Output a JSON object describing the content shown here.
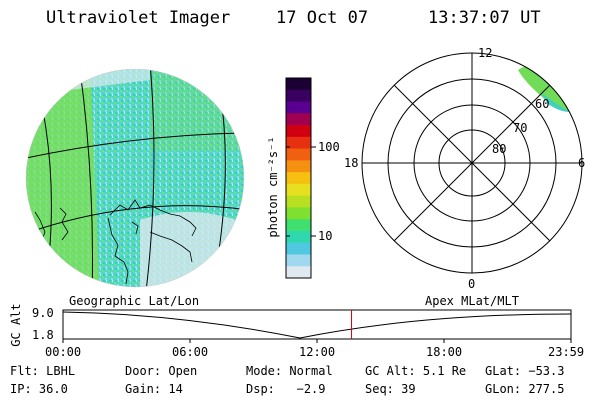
{
  "header": {
    "instrument": "Ultraviolet Imager",
    "date": "17 Oct 07",
    "time": "13:37:07 UT"
  },
  "colorbar": {
    "unit_label": "photon cm⁻²s⁻¹",
    "tick_labels": [
      "100",
      "10"
    ],
    "colors": [
      "#1a0033",
      "#3a0060",
      "#5a0090",
      "#a00050",
      "#d00010",
      "#e63010",
      "#f06010",
      "#f59010",
      "#f5c010",
      "#e6e020",
      "#b8e020",
      "#80e030",
      "#40e070",
      "#30d8b0",
      "#50c8e0",
      "#a0d8f0",
      "#e0e8f0"
    ]
  },
  "polar_plot": {
    "mlt_labels": {
      "top": "12",
      "left": "18",
      "right": "6",
      "bottom": "0"
    },
    "lat_labels": [
      "60",
      "70",
      "80"
    ]
  },
  "labels": {
    "left_map": "Geographic Lat/Lon",
    "right_map": "Apex MLat/MLT"
  },
  "timeline": {
    "axis_label": "GC Alt",
    "y_ticks": [
      "9.0",
      "1.8"
    ],
    "x_ticks": [
      "00:00",
      "06:00",
      "12:00",
      "18:00",
      "23:59"
    ],
    "current_time_fraction": 0.568
  },
  "status": {
    "row1": [
      {
        "label": "Flt:",
        "value": "LBHL"
      },
      {
        "label": "Door:",
        "value": "Open"
      },
      {
        "label": "Mode:",
        "value": "Normal"
      },
      {
        "label": "GC Alt:",
        "value": "5.1 Re"
      },
      {
        "label": "GLat:",
        "value": "−53.3"
      }
    ],
    "row2": [
      {
        "label": "IP:",
        "value": "36.0"
      },
      {
        "label": "Gain:",
        "value": "14"
      },
      {
        "label": "Dsp:",
        "value": "−2.9"
      },
      {
        "label": "Seq:",
        "value": "39"
      },
      {
        "label": "GLon:",
        "value": "277.5"
      }
    ]
  }
}
